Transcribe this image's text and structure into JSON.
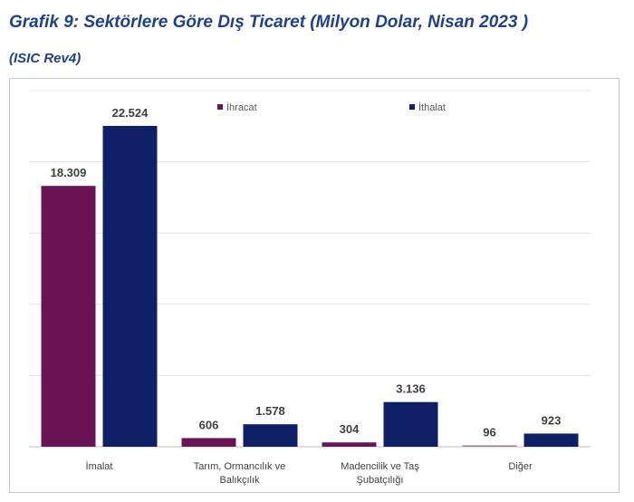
{
  "header": {
    "title": "Grafik 9:  Sektörlere Göre Dış Ticaret (Milyon Dolar, Nisan 2023 )",
    "subtitle": "(ISIC Rev4)"
  },
  "colors": {
    "ihracat": "#6a1456",
    "ithalat": "#0f1f66",
    "diger_ihracat": "#a8789a",
    "grid": "#e4e4e4",
    "axis": "#bfbfbf"
  },
  "chart_data": {
    "type": "bar",
    "title": "Grafik 9:  Sektörlere Göre Dış Ticaret (Milyon Dolar, Nisan 2023 )",
    "subtitle": "(ISIC Rev4)",
    "categories": [
      [
        "İmalat"
      ],
      [
        "Tarım, Ormancılık ve",
        "Balıkçılık"
      ],
      [
        "Madencilik ve Taş",
        "Şubatçılığı"
      ],
      [
        "Diğer"
      ]
    ],
    "series": [
      {
        "name": "İhracat",
        "values": [
          18309,
          606,
          304,
          96
        ],
        "labels": [
          "18.309",
          "606",
          "304",
          "96"
        ]
      },
      {
        "name": "İthalat",
        "values": [
          22524,
          1578,
          3136,
          923
        ],
        "labels": [
          "22.524",
          "1.578",
          "3.136",
          "923"
        ]
      }
    ],
    "ylim": [
      0,
      25000
    ],
    "grid": true,
    "legend_position": "top"
  }
}
